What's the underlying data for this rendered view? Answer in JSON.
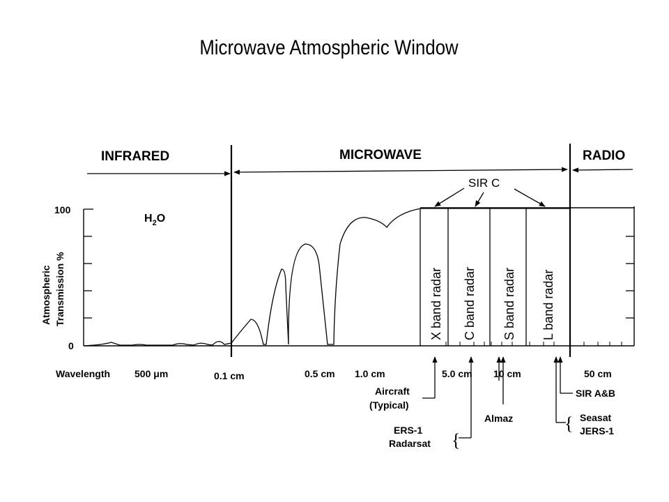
{
  "title": "Microwave Atmospheric Window",
  "regions": {
    "infrared": "INFRARED",
    "microwave": "MICROWAVE",
    "radio": "RADIO"
  },
  "molecule": {
    "main": "H",
    "sub": "2",
    "tail": "O"
  },
  "sir_c": "SIR C",
  "y_axis": {
    "line1": "Atmospheric",
    "line2": "Transmission %",
    "tick_top": "100",
    "tick_bottom": "0"
  },
  "x_axis": {
    "prefix": "Wavelength",
    "ticks": [
      "500 μm",
      "0.1 cm",
      "0.5 cm",
      "1.0 cm",
      "5.0 cm",
      "10 cm",
      "50 cm"
    ]
  },
  "bands": [
    "X band radar",
    "C band radar",
    "S band radar",
    "L band radar"
  ],
  "systems": {
    "aircraft_line1": "Aircraft",
    "aircraft_line2": "(Typical)",
    "ers1": "ERS-1",
    "radarsat": "Radarsat",
    "almaz": "Almaz",
    "sir_ab": "SIR A&B",
    "seasat": "Seasat",
    "jers1": "JERS-1"
  },
  "colors": {
    "ink": "#000000",
    "background": "#ffffff"
  }
}
